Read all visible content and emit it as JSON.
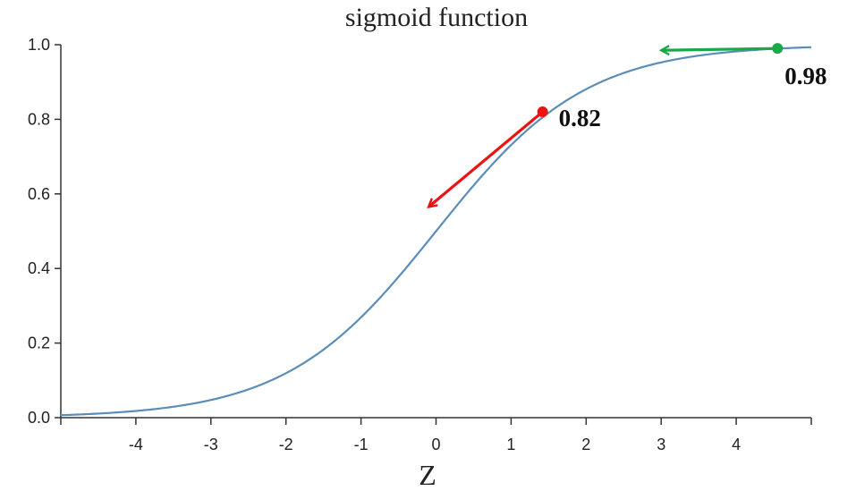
{
  "chart_data": {
    "type": "line",
    "title": "sigmoid function",
    "xlabel": "Z",
    "ylabel": "",
    "xlim": [
      -5,
      5
    ],
    "ylim": [
      0,
      1
    ],
    "x_ticks": [
      -4,
      -3,
      -2,
      -1,
      0,
      1,
      2,
      3,
      4
    ],
    "x_tick_labels": [
      "-4",
      "-3",
      "-2",
      "-1",
      "0",
      "1",
      "2",
      "3",
      "4"
    ],
    "y_ticks": [
      0,
      0.2,
      0.4,
      0.6,
      0.8,
      1
    ],
    "y_tick_labels": [
      "0.0",
      "0.2",
      "0.4",
      "0.6",
      "0.8",
      "1.0"
    ],
    "grid": false,
    "series": [
      {
        "function": "sigmoid",
        "x_range": [
          -5,
          5
        ],
        "color": "#5b8db8"
      }
    ],
    "annotations": [
      {
        "x": 1.42,
        "y": 0.82,
        "label": "0.82",
        "color": "#ee1111",
        "arrow_to": {
          "x": -0.1,
          "y": 0.565
        }
      },
      {
        "x": 4.55,
        "y": 0.99,
        "label": "0.98",
        "color": "#1aa84a",
        "arrow_to": {
          "x": 3.0,
          "y": 0.985
        }
      }
    ]
  }
}
